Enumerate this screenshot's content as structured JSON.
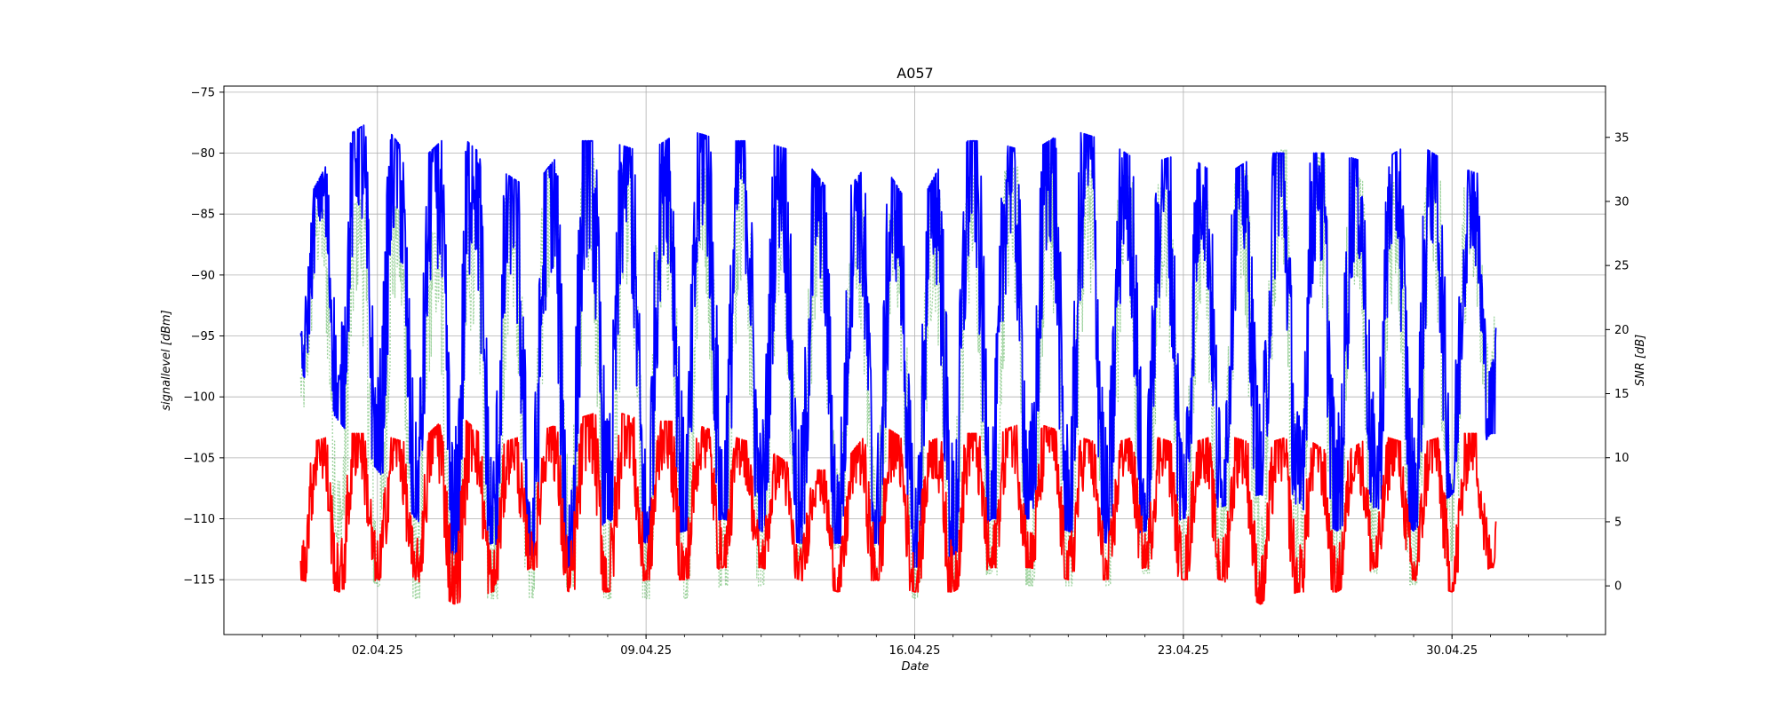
{
  "chart_data": {
    "type": "line",
    "title": "A057",
    "xlabel": "Date",
    "ylabel": "signallevel [dBm]",
    "ylabel_right": "SNR [dB]",
    "x_range": [
      "2025-03-29",
      "2025-05-04"
    ],
    "x_ticks": [
      "02.04.25",
      "09.04.25",
      "16.04.25",
      "23.04.25",
      "30.04.25"
    ],
    "x_tick_dates": [
      "2025-04-02",
      "2025-04-09",
      "2025-04-16",
      "2025-04-23",
      "2025-04-30"
    ],
    "ylim": [
      -119.5,
      -74.5
    ],
    "y_ticks": [
      "-75",
      "-80",
      "-85",
      "-90",
      "-95",
      "-100",
      "-105",
      "-110",
      "-115"
    ],
    "y2lim": [
      -3.8,
      39.0
    ],
    "y2_ticks": [
      "35",
      "30",
      "25",
      "20",
      "15",
      "10",
      "5",
      "0"
    ],
    "grid": true,
    "legend": "none",
    "colors": {
      "signal": "#0000ff",
      "noise": "#ff0000",
      "snr": "#2ca02c"
    },
    "series": [
      {
        "axis": "left",
        "style": "solid",
        "color": "#0000ff",
        "x": [
          "2025-03-31",
          "2025-04-01",
          "2025-04-02",
          "2025-04-03",
          "2025-04-04",
          "2025-04-05",
          "2025-04-06",
          "2025-04-07",
          "2025-04-08",
          "2025-04-09",
          "2025-04-10",
          "2025-04-11",
          "2025-04-12",
          "2025-04-13",
          "2025-04-14",
          "2025-04-15",
          "2025-04-16",
          "2025-04-17",
          "2025-04-18",
          "2025-04-19",
          "2025-04-20",
          "2025-04-21",
          "2025-04-22",
          "2025-04-23",
          "2025-04-24",
          "2025-04-25",
          "2025-04-26",
          "2025-04-27",
          "2025-04-28",
          "2025-04-29",
          "2025-04-30",
          "2025-05-01"
        ],
        "y_min": [
          -98,
          -102,
          -106,
          -110,
          -113,
          -112,
          -113,
          -114,
          -110,
          -112,
          -111,
          -110,
          -111,
          -112,
          -112,
          -112,
          -114,
          -113,
          -110,
          -110,
          -111,
          -112,
          -111,
          -110,
          -109,
          -108,
          -109,
          -111,
          -109,
          -111,
          -108,
          -103
        ],
        "y_max": [
          -85,
          -79,
          -77,
          -81,
          -78,
          -81,
          -83,
          -79,
          -79,
          -80,
          -78,
          -79,
          -79,
          -80,
          -84,
          -80,
          -85,
          -79,
          -79,
          -80,
          -78,
          -79,
          -81,
          -80,
          -82,
          -80,
          -80,
          -80,
          -81,
          -79,
          -81,
          -82
        ]
      },
      {
        "axis": "left",
        "style": "solid",
        "color": "#ff0000",
        "x": [
          "2025-03-31",
          "2025-04-01",
          "2025-04-02",
          "2025-04-03",
          "2025-04-04",
          "2025-04-05",
          "2025-04-06",
          "2025-04-07",
          "2025-04-08",
          "2025-04-09",
          "2025-04-10",
          "2025-04-11",
          "2025-04-12",
          "2025-04-13",
          "2025-04-14",
          "2025-04-15",
          "2025-04-16",
          "2025-04-17",
          "2025-04-18",
          "2025-04-19",
          "2025-04-20",
          "2025-04-21",
          "2025-04-22",
          "2025-04-23",
          "2025-04-24",
          "2025-04-25",
          "2025-04-26",
          "2025-04-27",
          "2025-04-28",
          "2025-04-29",
          "2025-04-30",
          "2025-05-01"
        ],
        "y_min": [
          -115,
          -116,
          -115,
          -115,
          -117,
          -116,
          -114,
          -116,
          -116,
          -115,
          -115,
          -114,
          -114,
          -115,
          -116,
          -115,
          -116,
          -116,
          -114,
          -114,
          -115,
          -115,
          -114,
          -115,
          -115,
          -117,
          -116,
          -116,
          -114,
          -115,
          -116,
          -114
        ],
        "y_max": [
          -104,
          -103,
          -103,
          -104,
          -101,
          -104,
          -103,
          -102,
          -101,
          -102,
          -102,
          -103,
          -104,
          -106,
          -106,
          -102,
          -104,
          -103,
          -103,
          -102,
          -103,
          -104,
          -103,
          -104,
          -103,
          -104,
          -103,
          -105,
          -103,
          -104,
          -103,
          -103
        ]
      },
      {
        "axis": "right",
        "style": "dotted",
        "color": "#2ca02c",
        "x": [
          "2025-03-31",
          "2025-04-01",
          "2025-04-02",
          "2025-04-03",
          "2025-04-04",
          "2025-04-05",
          "2025-04-06",
          "2025-04-07",
          "2025-04-08",
          "2025-04-09",
          "2025-04-10",
          "2025-04-11",
          "2025-04-12",
          "2025-04-13",
          "2025-04-14",
          "2025-04-15",
          "2025-04-16",
          "2025-04-17",
          "2025-04-18",
          "2025-04-19",
          "2025-04-20",
          "2025-04-21",
          "2025-04-22",
          "2025-04-23",
          "2025-04-24",
          "2025-04-25",
          "2025-04-26",
          "2025-04-27",
          "2025-04-28",
          "2025-04-29",
          "2025-04-30",
          "2025-05-01"
        ],
        "y_min": [
          15,
          3,
          0,
          -1,
          -1,
          -1,
          -1,
          0,
          -1,
          -1,
          -1,
          0,
          0,
          2,
          3,
          1,
          -1,
          0,
          1,
          0,
          0,
          0,
          1,
          1,
          1,
          0,
          0,
          1,
          1,
          0,
          2,
          15
        ],
        "y_max": [
          30,
          29,
          31,
          28,
          27,
          30,
          31,
          34,
          33,
          32,
          32,
          33,
          32,
          30,
          28,
          30,
          27,
          32,
          32,
          33,
          33,
          32,
          32,
          30,
          30,
          34,
          34,
          33,
          31,
          32,
          32,
          29
        ]
      }
    ]
  }
}
